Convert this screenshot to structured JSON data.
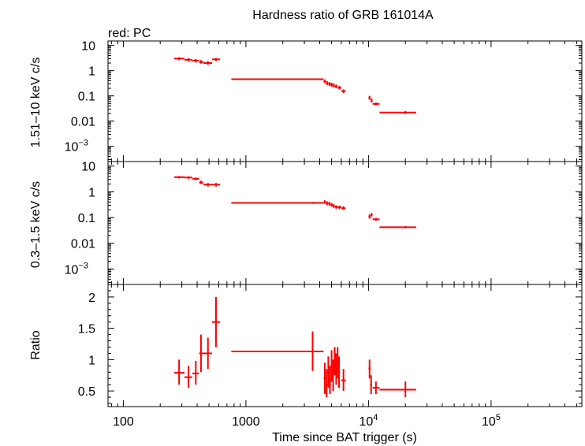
{
  "title": "Hardness ratio of GRB 161014A",
  "legend_note": "red: PC",
  "xlabel": "Time since BAT trigger (s)",
  "colors": {
    "data": "#ff0000",
    "axes": "#000000",
    "background": "#ffffff"
  },
  "chart_data": [
    {
      "type": "scatter",
      "panel": "top",
      "ylabel": "1.51–10 keV c/s",
      "xscale": "log",
      "yscale": "log",
      "xlim": [
        75,
        550000
      ],
      "ylim": [
        0.00025,
        15
      ],
      "y_tick_labels": [
        {
          "value": 10,
          "base": "10",
          "exp": ""
        },
        {
          "value": 1,
          "base": "1",
          "exp": ""
        },
        {
          "value": 0.1,
          "base": "0.1",
          "exp": ""
        },
        {
          "value": 0.01,
          "base": "0.01",
          "exp": ""
        },
        {
          "value": 0.001,
          "base": "10",
          "exp": "−3"
        }
      ],
      "series": [
        {
          "points": [
            {
              "x": 285,
              "xlo": 260,
              "xhi": 315,
              "y": 3.0,
              "ylo": 2.6,
              "yhi": 3.4
            },
            {
              "x": 340,
              "xlo": 315,
              "xhi": 365,
              "y": 2.7,
              "ylo": 2.3,
              "yhi": 3.1
            },
            {
              "x": 390,
              "xlo": 365,
              "xhi": 415,
              "y": 2.5,
              "ylo": 2.1,
              "yhi": 2.9
            },
            {
              "x": 430,
              "xlo": 415,
              "xhi": 450,
              "y": 2.2,
              "ylo": 1.9,
              "yhi": 2.6
            },
            {
              "x": 490,
              "xlo": 450,
              "xhi": 530,
              "y": 2.0,
              "ylo": 1.7,
              "yhi": 2.4
            },
            {
              "x": 570,
              "xlo": 530,
              "xhi": 615,
              "y": 2.8,
              "ylo": 2.4,
              "yhi": 3.2
            },
            {
              "x": 3500,
              "xlo": 760,
              "xhi": 4300,
              "y": 0.46,
              "ylo": 0.43,
              "yhi": 0.49
            },
            {
              "x": 4400,
              "xlo": 4300,
              "xhi": 4500,
              "y": 0.38,
              "ylo": 0.32,
              "yhi": 0.45
            },
            {
              "x": 4600,
              "xlo": 4500,
              "xhi": 4700,
              "y": 0.32,
              "ylo": 0.27,
              "yhi": 0.38
            },
            {
              "x": 4800,
              "xlo": 4700,
              "xhi": 4900,
              "y": 0.3,
              "ylo": 0.25,
              "yhi": 0.35
            },
            {
              "x": 5000,
              "xlo": 4900,
              "xhi": 5100,
              "y": 0.28,
              "ylo": 0.23,
              "yhi": 0.33
            },
            {
              "x": 5200,
              "xlo": 5100,
              "xhi": 5300,
              "y": 0.26,
              "ylo": 0.22,
              "yhi": 0.31
            },
            {
              "x": 5450,
              "xlo": 5300,
              "xhi": 5600,
              "y": 0.24,
              "ylo": 0.2,
              "yhi": 0.28
            },
            {
              "x": 5800,
              "xlo": 5600,
              "xhi": 6000,
              "y": 0.21,
              "ylo": 0.18,
              "yhi": 0.25
            },
            {
              "x": 6250,
              "xlo": 6000,
              "xhi": 6500,
              "y": 0.155,
              "ylo": 0.13,
              "yhi": 0.18
            },
            {
              "x": 10200,
              "xlo": 10000,
              "xhi": 10400,
              "y": 0.085,
              "ylo": 0.07,
              "yhi": 0.1
            },
            {
              "x": 10600,
              "xlo": 10400,
              "xhi": 10800,
              "y": 0.065,
              "ylo": 0.055,
              "yhi": 0.078
            },
            {
              "x": 11500,
              "xlo": 10800,
              "xhi": 12300,
              "y": 0.048,
              "ylo": 0.042,
              "yhi": 0.055
            },
            {
              "x": 20000,
              "xlo": 12300,
              "xhi": 24500,
              "y": 0.022,
              "ylo": 0.019,
              "yhi": 0.025
            }
          ]
        }
      ]
    },
    {
      "type": "scatter",
      "panel": "middle",
      "ylabel": "0.3–1.5 keV c/s",
      "xscale": "log",
      "yscale": "log",
      "xlim": [
        75,
        550000
      ],
      "ylim": [
        0.00025,
        15
      ],
      "y_tick_labels": [
        {
          "value": 10,
          "base": "10",
          "exp": ""
        },
        {
          "value": 1,
          "base": "1",
          "exp": ""
        },
        {
          "value": 0.1,
          "base": "0.1",
          "exp": ""
        },
        {
          "value": 0.01,
          "base": "0.01",
          "exp": ""
        },
        {
          "value": 0.001,
          "base": "10",
          "exp": "−3"
        }
      ],
      "series": [
        {
          "points": [
            {
              "x": 285,
              "xlo": 260,
              "xhi": 315,
              "y": 3.7,
              "ylo": 3.3,
              "yhi": 4.1
            },
            {
              "x": 340,
              "xlo": 315,
              "xhi": 365,
              "y": 3.6,
              "ylo": 3.2,
              "yhi": 4.0
            },
            {
              "x": 390,
              "xlo": 365,
              "xhi": 415,
              "y": 3.2,
              "ylo": 2.8,
              "yhi": 3.6
            },
            {
              "x": 430,
              "xlo": 415,
              "xhi": 450,
              "y": 2.3,
              "ylo": 2.0,
              "yhi": 2.7
            },
            {
              "x": 490,
              "xlo": 450,
              "xhi": 530,
              "y": 1.9,
              "ylo": 1.6,
              "yhi": 2.2
            },
            {
              "x": 570,
              "xlo": 530,
              "xhi": 615,
              "y": 1.9,
              "ylo": 1.6,
              "yhi": 2.2
            },
            {
              "x": 3500,
              "xlo": 760,
              "xhi": 4300,
              "y": 0.37,
              "ylo": 0.34,
              "yhi": 0.4
            },
            {
              "x": 4400,
              "xlo": 4300,
              "xhi": 4500,
              "y": 0.4,
              "ylo": 0.34,
              "yhi": 0.47
            },
            {
              "x": 4600,
              "xlo": 4500,
              "xhi": 4700,
              "y": 0.36,
              "ylo": 0.3,
              "yhi": 0.42
            },
            {
              "x": 4800,
              "xlo": 4700,
              "xhi": 4900,
              "y": 0.34,
              "ylo": 0.29,
              "yhi": 0.4
            },
            {
              "x": 5000,
              "xlo": 4900,
              "xhi": 5100,
              "y": 0.31,
              "ylo": 0.26,
              "yhi": 0.37
            },
            {
              "x": 5200,
              "xlo": 5100,
              "xhi": 5300,
              "y": 0.28,
              "ylo": 0.24,
              "yhi": 0.33
            },
            {
              "x": 5450,
              "xlo": 5300,
              "xhi": 5600,
              "y": 0.26,
              "ylo": 0.22,
              "yhi": 0.3
            },
            {
              "x": 5800,
              "xlo": 5600,
              "xhi": 6000,
              "y": 0.25,
              "ylo": 0.21,
              "yhi": 0.29
            },
            {
              "x": 6250,
              "xlo": 6000,
              "xhi": 6500,
              "y": 0.23,
              "ylo": 0.2,
              "yhi": 0.27
            },
            {
              "x": 10200,
              "xlo": 10000,
              "xhi": 10400,
              "y": 0.11,
              "ylo": 0.09,
              "yhi": 0.13
            },
            {
              "x": 10600,
              "xlo": 10400,
              "xhi": 10800,
              "y": 0.13,
              "ylo": 0.11,
              "yhi": 0.15
            },
            {
              "x": 11500,
              "xlo": 10800,
              "xhi": 12300,
              "y": 0.085,
              "ylo": 0.075,
              "yhi": 0.097
            },
            {
              "x": 20000,
              "xlo": 12300,
              "xhi": 24500,
              "y": 0.042,
              "ylo": 0.038,
              "yhi": 0.046
            }
          ]
        }
      ]
    },
    {
      "type": "scatter",
      "panel": "bottom",
      "ylabel": "Ratio",
      "xscale": "log",
      "yscale": "linear",
      "xlim": [
        75,
        550000
      ],
      "ylim": [
        0.25,
        2.2
      ],
      "y_tick_labels": [
        {
          "value": 2,
          "base": "2",
          "exp": ""
        },
        {
          "value": 1.5,
          "base": "1.5",
          "exp": ""
        },
        {
          "value": 1,
          "base": "1",
          "exp": ""
        },
        {
          "value": 0.5,
          "base": "0.5",
          "exp": ""
        }
      ],
      "series": [
        {
          "points": [
            {
              "x": 285,
              "xlo": 260,
              "xhi": 315,
              "y": 0.79,
              "ylo": 0.6,
              "yhi": 1.0
            },
            {
              "x": 340,
              "xlo": 315,
              "xhi": 365,
              "y": 0.72,
              "ylo": 0.55,
              "yhi": 0.9
            },
            {
              "x": 390,
              "xlo": 365,
              "xhi": 415,
              "y": 0.78,
              "ylo": 0.6,
              "yhi": 0.98
            },
            {
              "x": 430,
              "xlo": 415,
              "xhi": 450,
              "y": 1.1,
              "ylo": 0.8,
              "yhi": 1.4
            },
            {
              "x": 490,
              "xlo": 450,
              "xhi": 530,
              "y": 1.1,
              "ylo": 0.85,
              "yhi": 1.35
            },
            {
              "x": 570,
              "xlo": 530,
              "xhi": 615,
              "y": 1.6,
              "ylo": 1.2,
              "yhi": 2.0
            },
            {
              "x": 3500,
              "xlo": 760,
              "xhi": 4300,
              "y": 1.13,
              "ylo": 0.82,
              "yhi": 1.45
            },
            {
              "x": 4400,
              "xlo": 4300,
              "xhi": 4500,
              "y": 0.7,
              "ylo": 0.45,
              "yhi": 0.95
            },
            {
              "x": 4550,
              "xlo": 4450,
              "xhi": 4650,
              "y": 0.6,
              "ylo": 0.4,
              "yhi": 0.85
            },
            {
              "x": 4700,
              "xlo": 4600,
              "xhi": 4800,
              "y": 0.8,
              "ylo": 0.55,
              "yhi": 1.05
            },
            {
              "x": 4850,
              "xlo": 4750,
              "xhi": 4950,
              "y": 0.65,
              "ylo": 0.45,
              "yhi": 0.9
            },
            {
              "x": 5000,
              "xlo": 4900,
              "xhi": 5100,
              "y": 0.9,
              "ylo": 0.65,
              "yhi": 1.15
            },
            {
              "x": 5150,
              "xlo": 5050,
              "xhi": 5250,
              "y": 0.75,
              "ylo": 0.5,
              "yhi": 1.0
            },
            {
              "x": 5300,
              "xlo": 5200,
              "xhi": 5400,
              "y": 1.0,
              "ylo": 0.75,
              "yhi": 1.2
            },
            {
              "x": 5450,
              "xlo": 5350,
              "xhi": 5550,
              "y": 0.85,
              "ylo": 0.6,
              "yhi": 1.1
            },
            {
              "x": 5600,
              "xlo": 5500,
              "xhi": 5700,
              "y": 0.95,
              "ylo": 0.7,
              "yhi": 1.2
            },
            {
              "x": 5750,
              "xlo": 5650,
              "xhi": 5850,
              "y": 0.8,
              "ylo": 0.55,
              "yhi": 1.05
            },
            {
              "x": 6250,
              "xlo": 6000,
              "xhi": 6500,
              "y": 0.67,
              "ylo": 0.5,
              "yhi": 0.85
            },
            {
              "x": 10200,
              "xlo": 10000,
              "xhi": 10400,
              "y": 0.86,
              "ylo": 0.7,
              "yhi": 1.0
            },
            {
              "x": 10500,
              "xlo": 10300,
              "xhi": 10700,
              "y": 0.6,
              "ylo": 0.45,
              "yhi": 0.75
            },
            {
              "x": 11500,
              "xlo": 10800,
              "xhi": 12300,
              "y": 0.55,
              "ylo": 0.45,
              "yhi": 0.65
            },
            {
              "x": 20000,
              "xlo": 12300,
              "xhi": 24500,
              "y": 0.52,
              "ylo": 0.4,
              "yhi": 0.65
            }
          ]
        }
      ]
    }
  ],
  "x_tick_labels": [
    {
      "value": 100,
      "base": "100",
      "exp": ""
    },
    {
      "value": 1000,
      "base": "1000",
      "exp": ""
    },
    {
      "value": 10000,
      "base": "10",
      "exp": "4"
    },
    {
      "value": 100000,
      "base": "10",
      "exp": "5"
    }
  ]
}
